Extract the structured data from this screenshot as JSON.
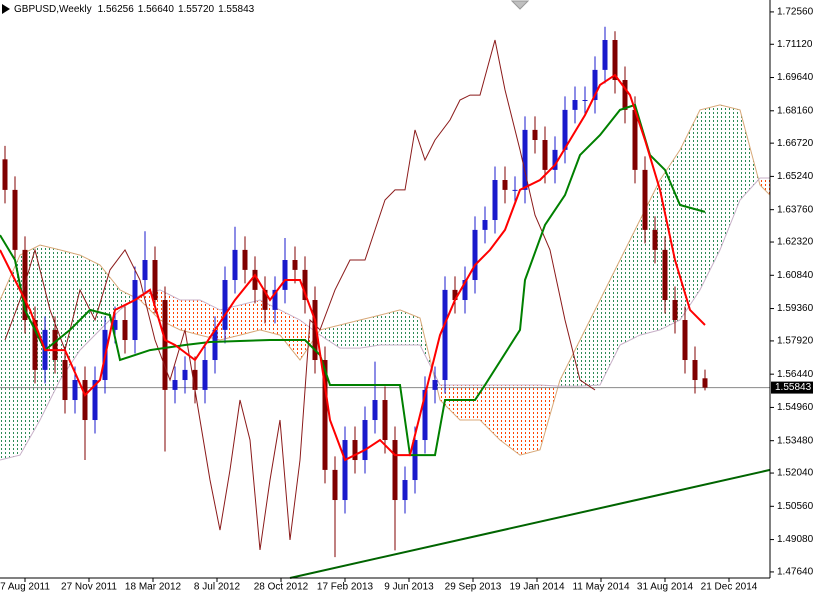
{
  "chart_data": {
    "type": "candlestick",
    "title": "GBPUSD,Weekly",
    "ohlc_labels": [
      "1.56256",
      "1.56640",
      "1.55720",
      "1.55843"
    ],
    "xlim": [
      -6.25,
      186.25
    ],
    "ylim": [
      1.4737,
      1.7309
    ],
    "xticks": [
      {
        "value": 0,
        "label": "7 Aug 2011"
      },
      {
        "value": 16,
        "label": "27 Nov 2011"
      },
      {
        "value": 32,
        "label": "18 Mar 2012"
      },
      {
        "value": 48,
        "label": "8 Jul 2012"
      },
      {
        "value": 64,
        "label": "28 Oct 2012"
      },
      {
        "value": 80,
        "label": "17 Feb 2013"
      },
      {
        "value": 96,
        "label": "9 Jun 2013"
      },
      {
        "value": 112,
        "label": "29 Sep 2013"
      },
      {
        "value": 128,
        "label": "19 Jan 2014"
      },
      {
        "value": 144,
        "label": "11 May 2014"
      },
      {
        "value": 160,
        "label": "31 Aug 2014"
      },
      {
        "value": 176,
        "label": "21 Dec 2014"
      }
    ],
    "yticks": [
      {
        "value": 1.7256,
        "label": "1.72560"
      },
      {
        "value": 1.7112,
        "label": "1.71120"
      },
      {
        "value": 1.6964,
        "label": "1.69640"
      },
      {
        "value": 1.6816,
        "label": "1.68160"
      },
      {
        "value": 1.6672,
        "label": "1.66720"
      },
      {
        "value": 1.6524,
        "label": "1.65240"
      },
      {
        "value": 1.6376,
        "label": "1.63760"
      },
      {
        "value": 1.6232,
        "label": "1.62320"
      },
      {
        "value": 1.6084,
        "label": "1.60840"
      },
      {
        "value": 1.5936,
        "label": "1.59360"
      },
      {
        "value": 1.5792,
        "label": "1.57920"
      },
      {
        "value": 1.5644,
        "label": "1.56440"
      },
      {
        "value": 1.5496,
        "label": "1.54960"
      },
      {
        "value": 1.5348,
        "label": "1.53480"
      },
      {
        "value": 1.5204,
        "label": "1.52040"
      },
      {
        "value": 1.5056,
        "label": "1.50560"
      },
      {
        "value": 1.4908,
        "label": "1.49080"
      },
      {
        "value": 1.4764,
        "label": "1.47640"
      }
    ],
    "last_price": {
      "value": 1.55843,
      "label": "1.55843"
    },
    "up_color": "#1a1acc",
    "down_color": "#800000",
    "x": [
      -5,
      -2.5,
      0,
      2.5,
      5,
      7.5,
      10,
      12.5,
      15,
      17.5,
      20,
      22.5,
      25,
      27.5,
      30,
      32.5,
      35,
      37.5,
      40,
      42.5,
      45,
      47.5,
      50,
      52.5,
      55,
      57.5,
      60,
      62.5,
      65,
      67.5,
      70,
      72.5,
      75,
      77.5,
      80,
      82.5,
      85,
      87.5,
      90,
      92.5,
      95,
      97.5,
      100,
      102.5,
      105,
      107.5,
      110,
      112.5,
      115,
      117.5,
      120,
      122.5,
      125,
      127.5,
      130,
      132.5,
      135,
      137.5,
      140,
      142.5,
      145,
      147.5,
      150,
      152.5,
      155,
      157.5,
      160,
      162.5,
      165,
      167.5,
      170
    ],
    "open": [
      1.66,
      1.6464,
      1.6197,
      1.5885,
      1.5663,
      1.5841,
      1.5707,
      1.5529,
      1.5618,
      1.544,
      1.5618,
      1.5841,
      1.5885,
      1.5796,
      1.6063,
      1.6152,
      1.5974,
      1.5574,
      1.5618,
      1.5663,
      1.5574,
      1.5707,
      1.5841,
      1.6063,
      1.6197,
      1.6108,
      1.6019,
      1.593,
      1.6019,
      1.6152,
      1.6108,
      1.5974,
      1.5707,
      1.5218,
      1.5084,
      1.5351,
      1.5262,
      1.544,
      1.5529,
      1.5351,
      1.5084,
      1.5173,
      1.5351,
      1.5574,
      1.5618,
      1.6019,
      1.5974,
      1.6063,
      1.6286,
      1.633,
      1.6508,
      1.6464,
      1.6464,
      1.6731,
      1.6686,
      1.6553,
      1.6642,
      1.682,
      1.6864,
      1.6864,
      1.6998,
      1.7131,
      1.6953,
      1.682,
      1.6553,
      1.6286,
      1.6197,
      1.5974,
      1.5885,
      1.5707,
      1.56256
    ],
    "high": [
      1.666,
      1.6524,
      1.6257,
      1.5945,
      1.5901,
      1.5901,
      1.5767,
      1.5678,
      1.5678,
      1.5678,
      1.5901,
      1.5945,
      1.5945,
      1.6123,
      1.628,
      1.6212,
      1.6034,
      1.5678,
      1.5723,
      1.5723,
      1.5767,
      1.5901,
      1.6123,
      1.63,
      1.6257,
      1.6168,
      1.6079,
      1.6079,
      1.625,
      1.6212,
      1.6168,
      1.6034,
      1.5767,
      1.5278,
      1.5411,
      1.5411,
      1.55,
      1.57,
      1.5589,
      1.5411,
      1.5233,
      1.5411,
      1.5634,
      1.5678,
      1.6079,
      1.6079,
      1.6123,
      1.6346,
      1.639,
      1.6568,
      1.6568,
      1.6524,
      1.6791,
      1.6791,
      1.6746,
      1.6702,
      1.688,
      1.6924,
      1.6924,
      1.7058,
      1.719,
      1.717,
      1.7013,
      1.688,
      1.6613,
      1.6346,
      1.6257,
      1.6034,
      1.5945,
      1.5767,
      1.5664
    ],
    "low": [
      1.6404,
      1.6137,
      1.5825,
      1.5603,
      1.5603,
      1.5647,
      1.5469,
      1.5469,
      1.5262,
      1.538,
      1.5558,
      1.5781,
      1.5736,
      1.5736,
      1.6003,
      1.5914,
      1.53,
      1.5514,
      1.5558,
      1.5514,
      1.5514,
      1.5647,
      1.5781,
      1.6003,
      1.6048,
      1.5959,
      1.587,
      1.587,
      1.5959,
      1.6048,
      1.5914,
      1.5647,
      1.5158,
      1.483,
      1.5024,
      1.5202,
      1.5202,
      1.538,
      1.5291,
      1.486,
      1.5024,
      1.5113,
      1.5291,
      1.5514,
      1.5558,
      1.5914,
      1.5914,
      1.6003,
      1.6226,
      1.627,
      1.6404,
      1.6404,
      1.6404,
      1.6626,
      1.6493,
      1.6493,
      1.6582,
      1.676,
      1.6804,
      1.6804,
      1.6938,
      1.6893,
      1.676,
      1.6493,
      1.6226,
      1.6137,
      1.5914,
      1.5825,
      1.5647,
      1.5558,
      1.5572
    ],
    "close": [
      1.6464,
      1.6197,
      1.5885,
      1.5663,
      1.5841,
      1.5707,
      1.5529,
      1.5618,
      1.544,
      1.5618,
      1.5841,
      1.5885,
      1.5796,
      1.6063,
      1.6152,
      1.5974,
      1.5574,
      1.5618,
      1.5663,
      1.5574,
      1.5707,
      1.5841,
      1.6063,
      1.6197,
      1.6108,
      1.6019,
      1.593,
      1.6019,
      1.6152,
      1.6108,
      1.5974,
      1.5707,
      1.5218,
      1.5084,
      1.5351,
      1.5262,
      1.544,
      1.5529,
      1.5351,
      1.5084,
      1.5173,
      1.5351,
      1.5574,
      1.5618,
      1.6019,
      1.5974,
      1.6063,
      1.6286,
      1.633,
      1.6508,
      1.6464,
      1.6464,
      1.6731,
      1.6686,
      1.6553,
      1.6642,
      1.682,
      1.6864,
      1.6864,
      1.6998,
      1.7131,
      1.6953,
      1.682,
      1.6553,
      1.6286,
      1.6197,
      1.5974,
      1.5885,
      1.5707,
      1.5618,
      1.55843
    ],
    "cloud": {
      "up_color": "#2e8b57",
      "down_color": "#ff4500",
      "span_a_color": "#d8a878",
      "span_b_color": "#c8b0c8",
      "x": [
        -6.25,
        -1.25,
        3.75,
        8.75,
        13.75,
        18.75,
        23.75,
        28.75,
        33.75,
        38.75,
        43.75,
        48.75,
        53.75,
        58.75,
        63.75,
        68.75,
        73.75,
        78.75,
        83.75,
        88.75,
        93.75,
        98.75,
        103.75,
        108.75,
        113.75,
        118.75,
        123.75,
        128.75,
        133.75,
        138.75,
        143.75,
        148.75,
        153.75,
        158.75,
        163.75,
        168.75,
        173.75,
        178.75,
        183.75,
        186.25
      ],
      "span_a": [
        1.5974,
        1.6174,
        1.6219,
        1.6197,
        1.6174,
        1.613,
        1.6019,
        1.5974,
        1.5885,
        1.5841,
        1.5818,
        1.5796,
        1.5818,
        1.5841,
        1.5818,
        1.5707,
        1.5841,
        1.5863,
        1.5885,
        1.5907,
        1.593,
        1.5894,
        1.5529,
        1.544,
        1.544,
        1.5351,
        1.5284,
        1.5307,
        1.5618,
        1.5796,
        1.5974,
        1.6152,
        1.633,
        1.6508,
        1.6642,
        1.682,
        1.6842,
        1.682,
        1.6486,
        1.6441
      ],
      "span_b": [
        1.5262,
        1.5284,
        1.544,
        1.5618,
        1.5751,
        1.5841,
        1.593,
        1.5996,
        1.6019,
        1.5974,
        1.5974,
        1.593,
        1.5952,
        1.5974,
        1.593,
        1.5885,
        1.5818,
        1.576,
        1.576,
        1.5774,
        1.5774,
        1.5774,
        1.5596,
        1.5596,
        1.5596,
        1.5596,
        1.5596,
        1.5596,
        1.5591,
        1.5591,
        1.5596,
        1.5774,
        1.5818,
        1.5841,
        1.5885,
        1.6019,
        1.6197,
        1.6419,
        1.6517,
        1.6517
      ]
    },
    "lines": [
      {
        "color": "#8b1a1a",
        "width": 1,
        "x": [
          -5,
          -1.25,
          2.5,
          6.25,
          10,
          13.75,
          17.5,
          21.25,
          25,
          28.75,
          32.5,
          36.25,
          40,
          43.75,
          46.25,
          48.75,
          51.25,
          53.75,
          56.25,
          58.75,
          61.25,
          63.75,
          66.25,
          68.75,
          71.25,
          73.75,
          77.5,
          81.25,
          85,
          87.5,
          90,
          92.5,
          95,
          97.5,
          100,
          102.5,
          106.25,
          108.75,
          111.25,
          113.75,
          117.5,
          120,
          123.75,
          127.5,
          131.25,
          135,
          138.75,
          142.5
        ],
        "values": [
          1.5796,
          1.5974,
          1.6197,
          1.593,
          1.5751,
          1.6019,
          1.5885,
          1.6108,
          1.6197,
          1.6063,
          1.5796,
          1.5618,
          1.5841,
          1.544,
          1.5173,
          1.495,
          1.5218,
          1.5529,
          1.5351,
          1.4862,
          1.5173,
          1.544,
          1.4906,
          1.5262,
          1.5885,
          1.5841,
          1.6019,
          1.6152,
          1.6152,
          1.6286,
          1.6419,
          1.6464,
          1.6464,
          1.6731,
          1.6597,
          1.6686,
          1.6775,
          1.6864,
          1.6886,
          1.6886,
          1.7131,
          1.6909,
          1.6642,
          1.6352,
          1.6197,
          1.5885,
          1.5618,
          1.5574
        ]
      },
      {
        "color": "#008000",
        "width": 2,
        "x": [
          -6.25,
          -2.5,
          0,
          5,
          11.25,
          16.25,
          21.25,
          23.75,
          31.25,
          40,
          46.25,
          61.25,
          70,
          73.75,
          76.25,
          93.75,
          96.25,
          102.5,
          105,
          112.5,
          115,
          123.75,
          125,
          130,
          135,
          138.75,
          143.75,
          148.75,
          152.5,
          156.25,
          160,
          163.75,
          170
        ],
        "values": [
          1.6263,
          1.6152,
          1.593,
          1.5751,
          1.5841,
          1.593,
          1.5907,
          1.5707,
          1.5751,
          1.5774,
          1.5787,
          1.5796,
          1.5796,
          1.5729,
          1.5596,
          1.5596,
          1.5284,
          1.5284,
          1.5529,
          1.5529,
          1.5596,
          1.5841,
          1.6063,
          1.6308,
          1.6441,
          1.6619,
          1.6708,
          1.682,
          1.6842,
          1.6619,
          1.6553,
          1.6397,
          1.6366
        ]
      },
      {
        "color": "#ff0000",
        "width": 2,
        "x": [
          -6.25,
          -2.5,
          1.25,
          5,
          10,
          15,
          18.75,
          22.5,
          27.5,
          31.25,
          35,
          37.5,
          42.5,
          47.5,
          52.5,
          57.5,
          61.25,
          65,
          68.75,
          72.5,
          76.25,
          80,
          85,
          88.75,
          92.5,
          96.25,
          100,
          103.75,
          107.5,
          112.5,
          116.25,
          120,
          123.75,
          128.75,
          132.5,
          136.25,
          140,
          143.75,
          147.5,
          151.25,
          155,
          158.75,
          162.5,
          166.25,
          170
        ],
        "values": [
          1.6197,
          1.6063,
          1.593,
          1.5751,
          1.5751,
          1.5551,
          1.5618,
          1.593,
          1.5974,
          1.6019,
          1.5796,
          1.5774,
          1.5707,
          1.5841,
          1.5974,
          1.6085,
          1.5974,
          1.6063,
          1.6063,
          1.5885,
          1.544,
          1.5262,
          1.5307,
          1.5351,
          1.5284,
          1.5284,
          1.5551,
          1.5818,
          1.5974,
          1.613,
          1.6197,
          1.6286,
          1.6464,
          1.6508,
          1.6575,
          1.6686,
          1.6797,
          1.6931,
          1.6975,
          1.6886,
          1.6686,
          1.6464,
          1.6152,
          1.593,
          1.5863
        ]
      },
      {
        "color": "#006400",
        "width": 2,
        "x": [
          66.25,
          186.25
        ],
        "values": [
          1.4737,
          1.5218
        ]
      }
    ]
  }
}
